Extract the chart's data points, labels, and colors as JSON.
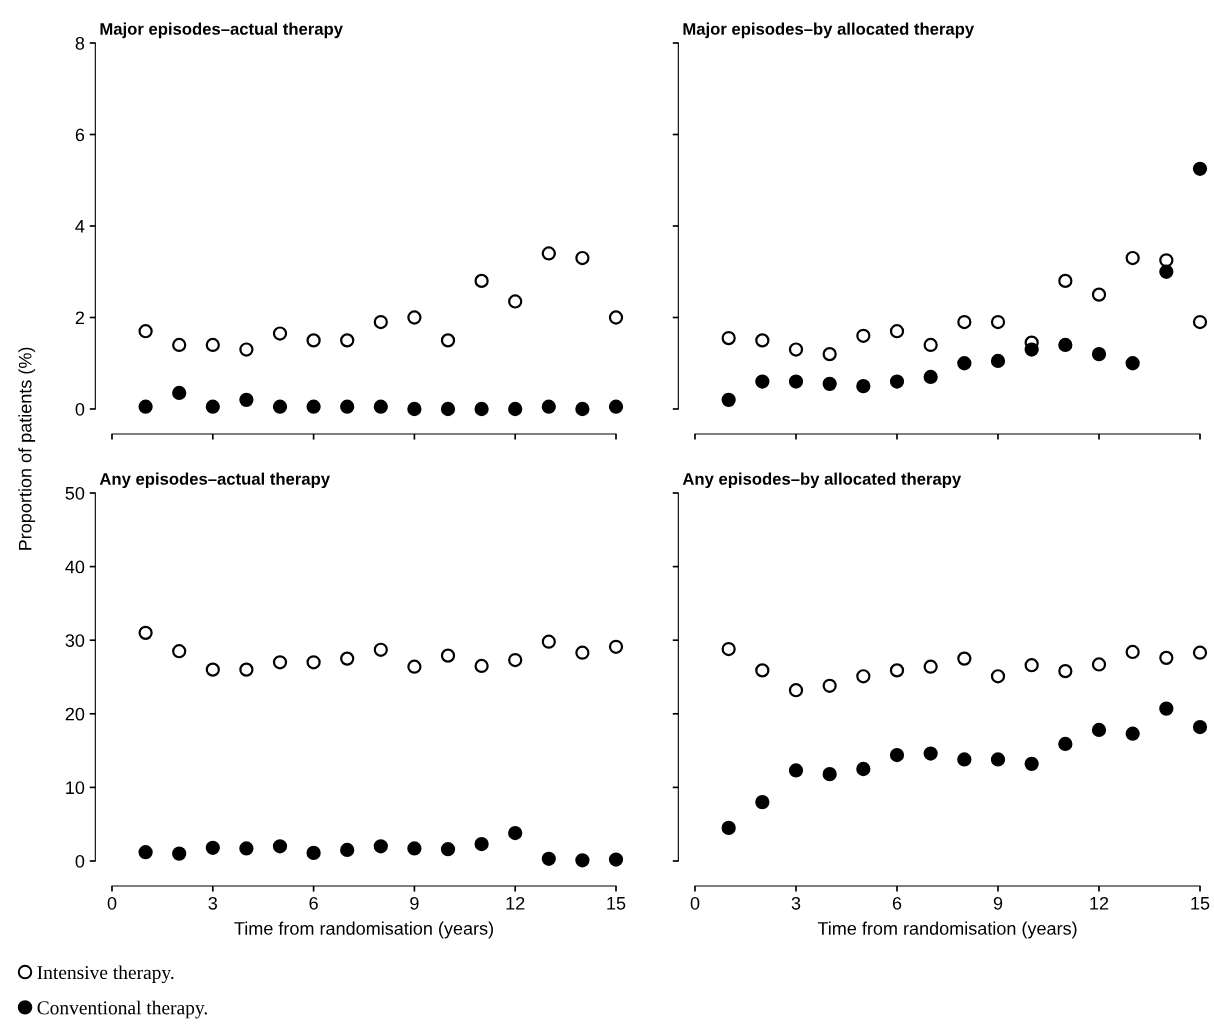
{
  "chart_data": [
    {
      "type": "scatter",
      "title": "Major episodes–actual therapy",
      "ylabel": "Proportion of patients (%)",
      "x": [
        1,
        2,
        3,
        4,
        5,
        6,
        7,
        8,
        9,
        10,
        11,
        12,
        13,
        14,
        15
      ],
      "xlim": [
        0,
        15
      ],
      "xticks": [
        0,
        3,
        6,
        9,
        12,
        15
      ],
      "ylim": [
        0,
        8
      ],
      "yticks": [
        0,
        2,
        4,
        6,
        8
      ],
      "tick_labels": "y",
      "marker": "circle",
      "grid": false,
      "series": [
        {
          "color": "#ffffff",
          "values": [
            1.7,
            1.4,
            1.4,
            1.3,
            1.65,
            1.5,
            1.5,
            1.9,
            2.0,
            1.5,
            2.8,
            2.35,
            3.4,
            3.3,
            2.0
          ]
        },
        {
          "color": "#000000",
          "values": [
            0.05,
            0.35,
            0.05,
            0.2,
            0.05,
            0.05,
            0.05,
            0.05,
            0,
            0,
            0,
            0,
            0.05,
            0,
            0.05
          ]
        }
      ]
    },
    {
      "type": "scatter",
      "title": "Major episodes–by allocated therapy",
      "x": [
        1,
        2,
        3,
        4,
        5,
        6,
        7,
        8,
        9,
        10,
        11,
        12,
        13,
        14,
        15
      ],
      "xlim": [
        0,
        15
      ],
      "xticks": [
        0,
        3,
        6,
        9,
        12,
        15
      ],
      "ylim": [
        0,
        8
      ],
      "yticks": [
        0,
        2,
        4,
        6,
        8
      ],
      "tick_labels": false,
      "marker": "circle",
      "grid": false,
      "series": [
        {
          "color": "#ffffff",
          "values": [
            1.55,
            1.5,
            1.3,
            1.2,
            1.6,
            1.7,
            1.4,
            1.9,
            1.9,
            1.45,
            2.8,
            2.5,
            3.3,
            3.25,
            1.9
          ]
        },
        {
          "color": "#000000",
          "values": [
            0.2,
            0.6,
            0.6,
            0.55,
            0.5,
            0.6,
            0.7,
            1.0,
            1.05,
            1.3,
            1.4,
            1.2,
            1.0,
            3.0,
            5.25
          ]
        }
      ]
    },
    {
      "type": "scatter",
      "title": "Any episodes–actual therapy",
      "xlabel": "Time from randomisation (years)",
      "x": [
        1,
        2,
        3,
        4,
        5,
        6,
        7,
        8,
        9,
        10,
        11,
        12,
        13,
        14,
        15
      ],
      "xlim": [
        0,
        15
      ],
      "xticks": [
        0,
        3,
        6,
        9,
        12,
        15
      ],
      "ylim": [
        0,
        50
      ],
      "yticks": [
        0,
        10,
        20,
        30,
        40,
        50
      ],
      "marker": "circle",
      "grid": false,
      "legend": "bottom",
      "series": [
        {
          "name": "Intensive therapy.",
          "color": "#ffffff",
          "values": [
            31,
            28.5,
            26,
            26,
            27,
            27,
            27.5,
            28.7,
            26.4,
            27.9,
            26.5,
            27.3,
            29.8,
            28.3,
            29.1
          ]
        },
        {
          "name": "Conventional therapy.",
          "color": "#000000",
          "values": [
            1.2,
            1.0,
            1.8,
            1.7,
            2.0,
            1.1,
            1.5,
            2.0,
            1.7,
            1.6,
            2.3,
            3.8,
            0.3,
            0.1,
            0.2
          ]
        }
      ]
    },
    {
      "type": "scatter",
      "title": "Any episodes–by allocated therapy",
      "xlabel": "Time from randomisation (years)",
      "x": [
        1,
        2,
        3,
        4,
        5,
        6,
        7,
        8,
        9,
        10,
        11,
        12,
        13,
        14,
        15
      ],
      "xlim": [
        0,
        15
      ],
      "xticks": [
        0,
        3,
        6,
        9,
        12,
        15
      ],
      "ylim": [
        0,
        50
      ],
      "yticks": [
        0,
        10,
        20,
        30,
        40,
        50
      ],
      "tick_labels": "x",
      "marker": "circle",
      "grid": false,
      "series": [
        {
          "color": "#ffffff",
          "values": [
            28.8,
            25.9,
            23.2,
            23.8,
            25.1,
            25.9,
            26.4,
            27.5,
            25.1,
            26.6,
            25.8,
            26.7,
            28.4,
            27.6,
            28.3
          ]
        },
        {
          "color": "#000000",
          "values": [
            4.5,
            8.0,
            12.3,
            11.8,
            12.5,
            14.4,
            14.6,
            13.8,
            13.8,
            13.2,
            15.9,
            17.8,
            17.3,
            20.7,
            18.2
          ]
        }
      ]
    }
  ]
}
